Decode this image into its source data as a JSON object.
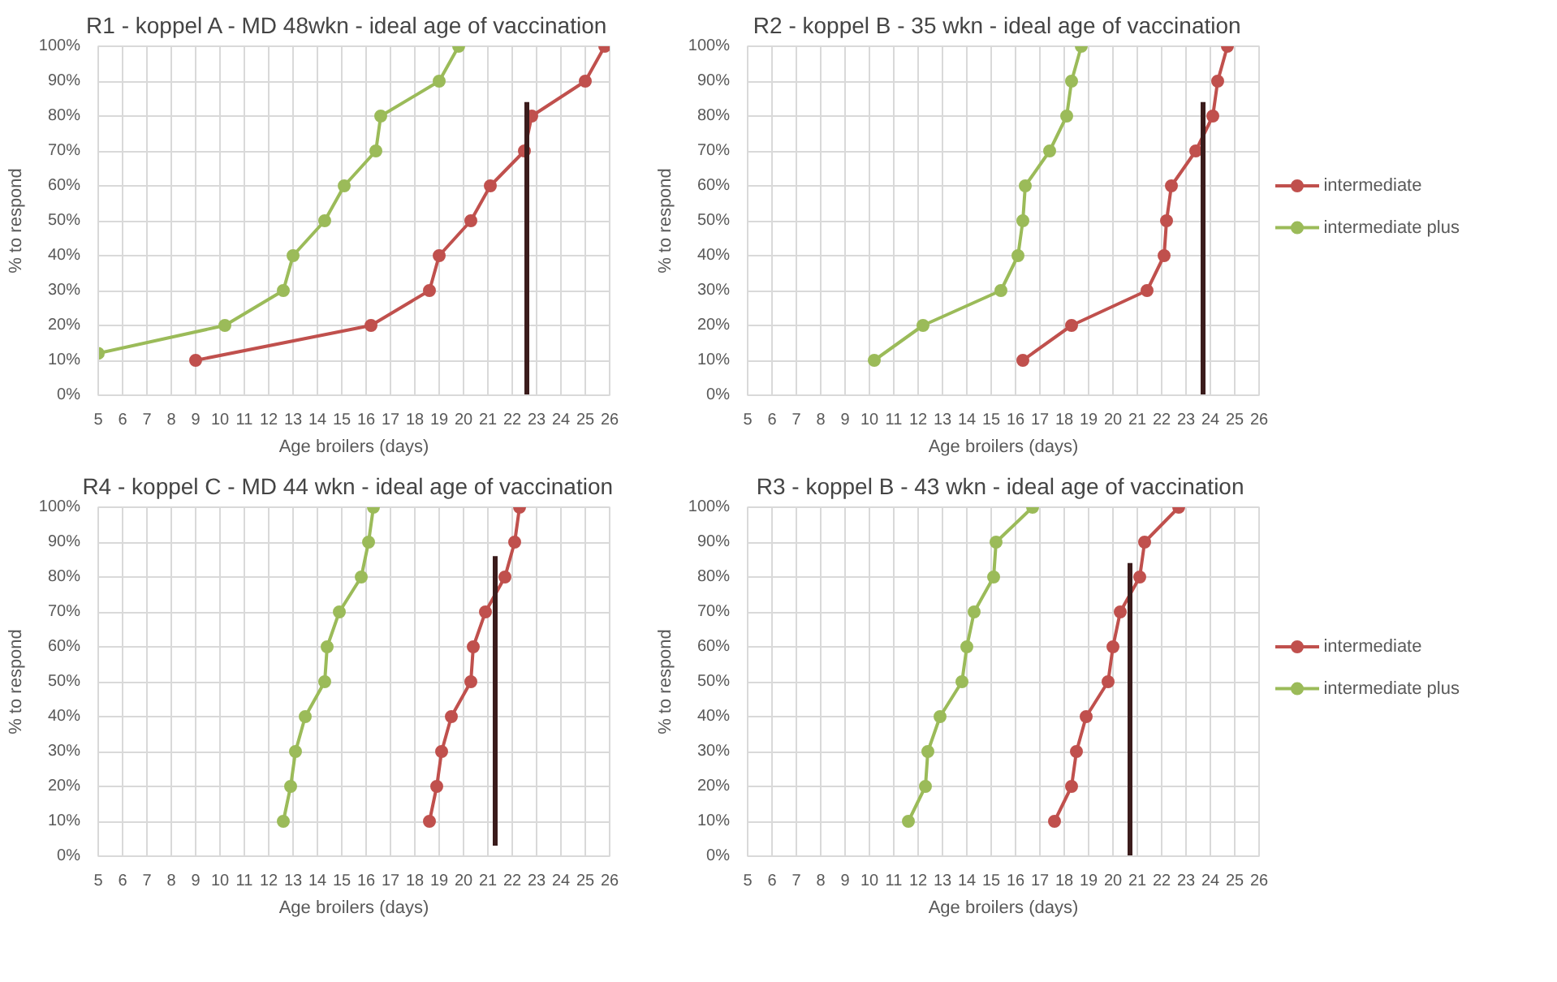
{
  "chart_data": [
    {
      "type": "line",
      "title": "R1 - koppel A - MD 48wkn  -  ideal age of vaccination",
      "xlabel": "Age broilers (days)",
      "ylabel": "% to respond",
      "xlim": [
        5,
        26
      ],
      "xticks": [
        5,
        6,
        7,
        8,
        9,
        10,
        11,
        12,
        13,
        14,
        15,
        16,
        17,
        18,
        19,
        20,
        21,
        22,
        23,
        24,
        25,
        26
      ],
      "ylim": [
        0,
        100
      ],
      "yticks": [
        {
          "value": 0,
          "label": "0%"
        },
        {
          "value": 10,
          "label": "10%"
        },
        {
          "value": 20,
          "label": "20%"
        },
        {
          "value": 30,
          "label": "30%"
        },
        {
          "value": 40,
          "label": "40%"
        },
        {
          "value": 50,
          "label": "50%"
        },
        {
          "value": 60,
          "label": "60%"
        },
        {
          "value": 70,
          "label": "70%"
        },
        {
          "value": 80,
          "label": "80%"
        },
        {
          "value": 90,
          "label": "90%"
        },
        {
          "value": 100,
          "label": "100%"
        }
      ],
      "grid": true,
      "legend": false,
      "series": [
        {
          "color": "#c0504d",
          "marker": "circle",
          "x": [
            9,
            16.2,
            18.6,
            19,
            20.3,
            21.1,
            22.5,
            22.8,
            25,
            25.8
          ],
          "values": [
            10,
            20,
            30,
            40,
            50,
            60,
            70,
            80,
            90,
            100
          ]
        },
        {
          "color": "#9bbb59",
          "marker": "circle",
          "x": [
            5,
            10.2,
            12.6,
            13,
            14.3,
            15.1,
            16.4,
            16.6,
            19,
            19.8
          ],
          "values": [
            12,
            20,
            30,
            40,
            50,
            60,
            70,
            80,
            90,
            100
          ]
        },
        {
          "color": "#3b1c1c",
          "marker": "none",
          "x": [
            22.6,
            22.6
          ],
          "values": [
            0,
            84
          ]
        }
      ]
    },
    {
      "type": "line",
      "title": "R2 - koppel B - 35 wkn  -  ideal age of vaccination",
      "xlabel": "Age broilers (days)",
      "ylabel": "% to respond",
      "xlim": [
        5,
        26
      ],
      "xticks": [
        5,
        6,
        7,
        8,
        9,
        10,
        11,
        12,
        13,
        14,
        15,
        16,
        17,
        18,
        19,
        20,
        21,
        22,
        23,
        24,
        25,
        26
      ],
      "ylim": [
        0,
        100
      ],
      "yticks": [
        {
          "value": 0,
          "label": "0%"
        },
        {
          "value": 10,
          "label": "10%"
        },
        {
          "value": 20,
          "label": "20%"
        },
        {
          "value": 30,
          "label": "30%"
        },
        {
          "value": 40,
          "label": "40%"
        },
        {
          "value": 50,
          "label": "50%"
        },
        {
          "value": 60,
          "label": "60%"
        },
        {
          "value": 70,
          "label": "70%"
        },
        {
          "value": 80,
          "label": "80%"
        },
        {
          "value": 90,
          "label": "90%"
        },
        {
          "value": 100,
          "label": "100%"
        }
      ],
      "grid": true,
      "legend": "right",
      "series": [
        {
          "name": "intermediate",
          "color": "#c0504d",
          "marker": "circle",
          "x": [
            16.3,
            18.3,
            21.4,
            22.1,
            22.2,
            22.4,
            23.4,
            24.1,
            24.3,
            24.7
          ],
          "values": [
            10,
            20,
            30,
            40,
            50,
            60,
            70,
            80,
            90,
            100
          ]
        },
        {
          "name": "intermediate plus",
          "color": "#9bbb59",
          "marker": "circle",
          "x": [
            10.2,
            12.2,
            15.4,
            16.1,
            16.3,
            16.4,
            17.4,
            18.1,
            18.3,
            18.7
          ],
          "values": [
            10,
            20,
            30,
            40,
            50,
            60,
            70,
            80,
            90,
            100
          ]
        },
        {
          "color": "#3b1c1c",
          "marker": "none",
          "x": [
            23.7,
            23.7
          ],
          "values": [
            0,
            84
          ]
        }
      ]
    },
    {
      "type": "line",
      "title": "R4 - koppel C - MD 44 wkn  -  ideal age of vaccination",
      "xlabel": "Age broilers (days)",
      "ylabel": "% to respond",
      "xlim": [
        5,
        26
      ],
      "xticks": [
        5,
        6,
        7,
        8,
        9,
        10,
        11,
        12,
        13,
        14,
        15,
        16,
        17,
        18,
        19,
        20,
        21,
        22,
        23,
        24,
        25,
        26
      ],
      "ylim": [
        0,
        100
      ],
      "yticks": [
        {
          "value": 0,
          "label": "0%"
        },
        {
          "value": 10,
          "label": "10%"
        },
        {
          "value": 20,
          "label": "20%"
        },
        {
          "value": 30,
          "label": "30%"
        },
        {
          "value": 40,
          "label": "40%"
        },
        {
          "value": 50,
          "label": "50%"
        },
        {
          "value": 60,
          "label": "60%"
        },
        {
          "value": 70,
          "label": "70%"
        },
        {
          "value": 80,
          "label": "80%"
        },
        {
          "value": 90,
          "label": "90%"
        },
        {
          "value": 100,
          "label": "100%"
        }
      ],
      "grid": true,
      "legend": false,
      "series": [
        {
          "color": "#c0504d",
          "marker": "circle",
          "x": [
            18.6,
            18.9,
            19.1,
            19.5,
            20.3,
            20.4,
            20.9,
            21.7,
            22.1,
            22.3
          ],
          "values": [
            10,
            20,
            30,
            40,
            50,
            60,
            70,
            80,
            90,
            100
          ]
        },
        {
          "color": "#9bbb59",
          "marker": "circle",
          "x": [
            12.6,
            12.9,
            13.1,
            13.5,
            14.3,
            14.4,
            14.9,
            15.8,
            16.1,
            16.3
          ],
          "values": [
            10,
            20,
            30,
            40,
            50,
            60,
            70,
            80,
            90,
            100
          ]
        },
        {
          "color": "#3b1c1c",
          "marker": "none",
          "x": [
            21.3,
            21.3
          ],
          "values": [
            3,
            86
          ]
        }
      ]
    },
    {
      "type": "line",
      "title": "R3 - koppel B - 43 wkn -  ideal age of vaccination",
      "xlabel": "Age broilers (days)",
      "ylabel": "% to respond",
      "xlim": [
        5,
        26
      ],
      "xticks": [
        5,
        6,
        7,
        8,
        9,
        10,
        11,
        12,
        13,
        14,
        15,
        16,
        17,
        18,
        19,
        20,
        21,
        22,
        23,
        24,
        25,
        26
      ],
      "ylim": [
        0,
        100
      ],
      "yticks": [
        {
          "value": 0,
          "label": "0%"
        },
        {
          "value": 10,
          "label": "10%"
        },
        {
          "value": 20,
          "label": "20%"
        },
        {
          "value": 30,
          "label": "30%"
        },
        {
          "value": 40,
          "label": "40%"
        },
        {
          "value": 50,
          "label": "50%"
        },
        {
          "value": 60,
          "label": "60%"
        },
        {
          "value": 70,
          "label": "70%"
        },
        {
          "value": 80,
          "label": "80%"
        },
        {
          "value": 90,
          "label": "90%"
        },
        {
          "value": 100,
          "label": "100%"
        }
      ],
      "grid": true,
      "legend": "right",
      "series": [
        {
          "name": "intermediate",
          "color": "#c0504d",
          "marker": "circle",
          "x": [
            17.6,
            18.3,
            18.5,
            18.9,
            19.8,
            20,
            20.3,
            21.1,
            21.3,
            22.7
          ],
          "values": [
            10,
            20,
            30,
            40,
            50,
            60,
            70,
            80,
            90,
            100
          ]
        },
        {
          "name": "intermediate plus",
          "color": "#9bbb59",
          "marker": "circle",
          "x": [
            11.6,
            12.3,
            12.4,
            12.9,
            13.8,
            14,
            14.3,
            15.1,
            15.2,
            16.7
          ],
          "values": [
            10,
            20,
            30,
            40,
            50,
            60,
            70,
            80,
            90,
            100
          ]
        },
        {
          "color": "#3b1c1c",
          "marker": "none",
          "x": [
            20.7,
            20.7
          ],
          "values": [
            0,
            84
          ]
        }
      ]
    }
  ]
}
